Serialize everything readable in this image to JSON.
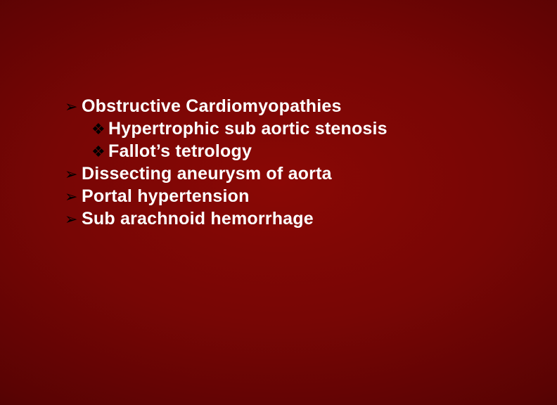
{
  "slide": {
    "background": {
      "gradient_center": "#8a0805",
      "gradient_mid": "#5a0303",
      "gradient_edge": "#1a0000"
    },
    "typography": {
      "text_color": "#ffffff",
      "bullet_color": "#000000",
      "font_family": "Arial",
      "font_weight": 700,
      "font_size_pt": 19
    },
    "bullets": {
      "level1_glyph": "➢",
      "level2_glyph": "❖"
    },
    "items": [
      {
        "level": 1,
        "text": "Obstructive Cardiomyopathies"
      },
      {
        "level": 2,
        "text": "Hypertrophic sub aortic stenosis"
      },
      {
        "level": 2,
        "text": "Fallot’s tetrology"
      },
      {
        "level": 1,
        "text": "Dissecting aneurysm of aorta"
      },
      {
        "level": 1,
        "text": "Portal hypertension"
      },
      {
        "level": 1,
        "text": "Sub arachnoid hemorrhage"
      }
    ]
  }
}
